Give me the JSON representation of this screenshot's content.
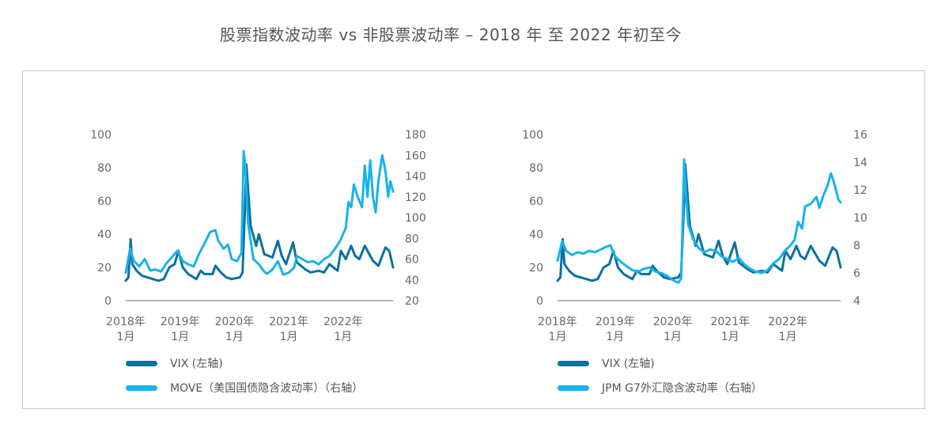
{
  "title": "股票指数波动率 vs 非股票波动率 – 2018 年 至 2022 年初至今",
  "colors": {
    "dark": "#0a71a2",
    "light": "#18b3ea",
    "axis": "#999999",
    "frame": "#c9c9c9"
  },
  "charts": [
    {
      "legend": {
        "series1": "VIX (左轴)",
        "series2": "MOVE（美国国债隐含波动率）（右轴）"
      },
      "left_ticks": [
        "0",
        "20",
        "40",
        "60",
        "80",
        "100"
      ],
      "right_ticks": [
        "20",
        "40",
        "60",
        "80",
        "100",
        "120",
        "140",
        "160",
        "180"
      ],
      "x_ticks": [
        {
          "year": "2018年",
          "month": "1月"
        },
        {
          "year": "2019年",
          "month": "1月"
        },
        {
          "year": "2020年",
          "month": "1月"
        },
        {
          "year": "2021年",
          "month": "1月"
        },
        {
          "year": "2022年",
          "month": "1月"
        }
      ]
    },
    {
      "legend": {
        "series1": "VIX (左轴)",
        "series2": "JPM G7外汇隐含波动率（右轴）"
      },
      "left_ticks": [
        "0",
        "20",
        "40",
        "60",
        "80",
        "100"
      ],
      "right_ticks": [
        "4",
        "6",
        "8",
        "10",
        "12",
        "14",
        "16"
      ],
      "x_ticks": [
        {
          "year": "2018年",
          "month": "1月"
        },
        {
          "year": "2019年",
          "month": "1月"
        },
        {
          "year": "2020年",
          "month": "1月"
        },
        {
          "year": "2021年",
          "month": "1月"
        },
        {
          "year": "2022年",
          "month": "1月"
        }
      ]
    }
  ],
  "chart_data": [
    {
      "type": "line",
      "x_range": [
        2018.0,
        2022.92
      ],
      "ylim_left": [
        0,
        100
      ],
      "ylim_right": [
        20,
        180
      ],
      "series": [
        {
          "name": "VIX (左轴)",
          "axis": "left",
          "color": "#0a71a2",
          "points": [
            [
              2018.0,
              12
            ],
            [
              2018.05,
              14
            ],
            [
              2018.09,
              37
            ],
            [
              2018.12,
              22
            ],
            [
              2018.2,
              18
            ],
            [
              2018.3,
              15
            ],
            [
              2018.4,
              14
            ],
            [
              2018.5,
              13
            ],
            [
              2018.6,
              12
            ],
            [
              2018.7,
              13
            ],
            [
              2018.8,
              20
            ],
            [
              2018.9,
              22
            ],
            [
              2018.97,
              30
            ],
            [
              2019.05,
              20
            ],
            [
              2019.15,
              16
            ],
            [
              2019.3,
              13
            ],
            [
              2019.38,
              18
            ],
            [
              2019.45,
              16
            ],
            [
              2019.6,
              16
            ],
            [
              2019.65,
              21
            ],
            [
              2019.75,
              17
            ],
            [
              2019.85,
              14
            ],
            [
              2019.95,
              13
            ],
            [
              2020.1,
              14
            ],
            [
              2020.15,
              17
            ],
            [
              2020.2,
              60
            ],
            [
              2020.22,
              82
            ],
            [
              2020.3,
              45
            ],
            [
              2020.4,
              33
            ],
            [
              2020.45,
              40
            ],
            [
              2020.55,
              28
            ],
            [
              2020.7,
              26
            ],
            [
              2020.8,
              36
            ],
            [
              2020.87,
              27
            ],
            [
              2020.95,
              22
            ],
            [
              2021.08,
              35
            ],
            [
              2021.15,
              23
            ],
            [
              2021.3,
              19
            ],
            [
              2021.4,
              17
            ],
            [
              2021.55,
              18
            ],
            [
              2021.65,
              17
            ],
            [
              2021.75,
              22
            ],
            [
              2021.9,
              18
            ],
            [
              2021.96,
              30
            ],
            [
              2022.05,
              25
            ],
            [
              2022.15,
              33
            ],
            [
              2022.22,
              27
            ],
            [
              2022.3,
              25
            ],
            [
              2022.4,
              33
            ],
            [
              2022.45,
              30
            ],
            [
              2022.55,
              24
            ],
            [
              2022.65,
              21
            ],
            [
              2022.78,
              32
            ],
            [
              2022.85,
              30
            ],
            [
              2022.92,
              20
            ]
          ]
        },
        {
          "name": "MOVE（美国国债隐含波动率）（右轴）",
          "axis": "right",
          "color": "#18b3ea",
          "points": [
            [
              2018.0,
              47
            ],
            [
              2018.08,
              70
            ],
            [
              2018.15,
              58
            ],
            [
              2018.25,
              53
            ],
            [
              2018.35,
              60
            ],
            [
              2018.45,
              49
            ],
            [
              2018.55,
              50
            ],
            [
              2018.65,
              48
            ],
            [
              2018.75,
              56
            ],
            [
              2018.85,
              62
            ],
            [
              2018.95,
              68
            ],
            [
              2019.05,
              58
            ],
            [
              2019.15,
              55
            ],
            [
              2019.25,
              53
            ],
            [
              2019.35,
              65
            ],
            [
              2019.45,
              75
            ],
            [
              2019.55,
              86
            ],
            [
              2019.65,
              88
            ],
            [
              2019.7,
              78
            ],
            [
              2019.8,
              70
            ],
            [
              2019.88,
              74
            ],
            [
              2019.95,
              60
            ],
            [
              2020.05,
              58
            ],
            [
              2020.13,
              66
            ],
            [
              2020.17,
              164
            ],
            [
              2020.2,
              150
            ],
            [
              2020.25,
              95
            ],
            [
              2020.35,
              60
            ],
            [
              2020.45,
              55
            ],
            [
              2020.55,
              48
            ],
            [
              2020.6,
              46
            ],
            [
              2020.7,
              50
            ],
            [
              2020.8,
              58
            ],
            [
              2020.9,
              45
            ],
            [
              2021.0,
              47
            ],
            [
              2021.1,
              52
            ],
            [
              2021.15,
              63
            ],
            [
              2021.25,
              60
            ],
            [
              2021.35,
              57
            ],
            [
              2021.45,
              58
            ],
            [
              2021.55,
              55
            ],
            [
              2021.65,
              60
            ],
            [
              2021.75,
              63
            ],
            [
              2021.85,
              70
            ],
            [
              2021.95,
              78
            ],
            [
              2022.05,
              90
            ],
            [
              2022.1,
              115
            ],
            [
              2022.15,
              110
            ],
            [
              2022.2,
              132
            ],
            [
              2022.27,
              120
            ],
            [
              2022.35,
              110
            ],
            [
              2022.4,
              150
            ],
            [
              2022.45,
              120
            ],
            [
              2022.5,
              155
            ],
            [
              2022.55,
              120
            ],
            [
              2022.6,
              105
            ],
            [
              2022.65,
              135
            ],
            [
              2022.72,
              160
            ],
            [
              2022.78,
              145
            ],
            [
              2022.83,
              120
            ],
            [
              2022.87,
              135
            ],
            [
              2022.92,
              125
            ]
          ]
        }
      ]
    },
    {
      "type": "line",
      "x_range": [
        2018.0,
        2022.92
      ],
      "ylim_left": [
        0,
        100
      ],
      "ylim_right": [
        4,
        16
      ],
      "series": [
        {
          "name": "VIX (左轴)",
          "axis": "left",
          "color": "#0a71a2",
          "points": [
            [
              2018.0,
              12
            ],
            [
              2018.05,
              14
            ],
            [
              2018.09,
              37
            ],
            [
              2018.12,
              22
            ],
            [
              2018.2,
              18
            ],
            [
              2018.3,
              15
            ],
            [
              2018.4,
              14
            ],
            [
              2018.5,
              13
            ],
            [
              2018.6,
              12
            ],
            [
              2018.7,
              13
            ],
            [
              2018.8,
              20
            ],
            [
              2018.9,
              22
            ],
            [
              2018.97,
              30
            ],
            [
              2019.05,
              20
            ],
            [
              2019.15,
              16
            ],
            [
              2019.3,
              13
            ],
            [
              2019.38,
              18
            ],
            [
              2019.45,
              16
            ],
            [
              2019.6,
              16
            ],
            [
              2019.65,
              21
            ],
            [
              2019.75,
              17
            ],
            [
              2019.85,
              14
            ],
            [
              2019.95,
              13
            ],
            [
              2020.1,
              14
            ],
            [
              2020.15,
              17
            ],
            [
              2020.2,
              60
            ],
            [
              2020.22,
              82
            ],
            [
              2020.3,
              45
            ],
            [
              2020.4,
              33
            ],
            [
              2020.45,
              40
            ],
            [
              2020.55,
              28
            ],
            [
              2020.7,
              26
            ],
            [
              2020.8,
              36
            ],
            [
              2020.87,
              27
            ],
            [
              2020.95,
              22
            ],
            [
              2021.08,
              35
            ],
            [
              2021.15,
              23
            ],
            [
              2021.3,
              19
            ],
            [
              2021.4,
              17
            ],
            [
              2021.55,
              18
            ],
            [
              2021.65,
              17
            ],
            [
              2021.75,
              22
            ],
            [
              2021.9,
              18
            ],
            [
              2021.96,
              30
            ],
            [
              2022.05,
              25
            ],
            [
              2022.15,
              33
            ],
            [
              2022.22,
              27
            ],
            [
              2022.3,
              25
            ],
            [
              2022.4,
              33
            ],
            [
              2022.45,
              30
            ],
            [
              2022.55,
              24
            ],
            [
              2022.65,
              21
            ],
            [
              2022.78,
              32
            ],
            [
              2022.85,
              30
            ],
            [
              2022.92,
              20
            ]
          ]
        },
        {
          "name": "JPM G7外汇隐含波动率（右轴）",
          "axis": "right",
          "color": "#18b3ea",
          "points": [
            [
              2018.0,
              6.9
            ],
            [
              2018.08,
              8.3
            ],
            [
              2018.15,
              7.6
            ],
            [
              2018.25,
              7.3
            ],
            [
              2018.35,
              7.5
            ],
            [
              2018.45,
              7.4
            ],
            [
              2018.55,
              7.6
            ],
            [
              2018.65,
              7.5
            ],
            [
              2018.75,
              7.7
            ],
            [
              2018.85,
              7.9
            ],
            [
              2018.92,
              8.0
            ],
            [
              2019.0,
              7.2
            ],
            [
              2019.1,
              6.8
            ],
            [
              2019.2,
              6.5
            ],
            [
              2019.3,
              6.2
            ],
            [
              2019.4,
              6.1
            ],
            [
              2019.5,
              6.3
            ],
            [
              2019.6,
              6.4
            ],
            [
              2019.7,
              6.1
            ],
            [
              2019.8,
              6.0
            ],
            [
              2019.9,
              5.8
            ],
            [
              2020.0,
              5.5
            ],
            [
              2020.1,
              5.3
            ],
            [
              2020.15,
              5.6
            ],
            [
              2020.2,
              14.2
            ],
            [
              2020.22,
              12.5
            ],
            [
              2020.27,
              9.5
            ],
            [
              2020.35,
              8.5
            ],
            [
              2020.45,
              7.8
            ],
            [
              2020.55,
              7.5
            ],
            [
              2020.65,
              7.7
            ],
            [
              2020.75,
              7.6
            ],
            [
              2020.85,
              7.2
            ],
            [
              2020.95,
              7.0
            ],
            [
              2021.05,
              6.8
            ],
            [
              2021.15,
              7.1
            ],
            [
              2021.25,
              6.6
            ],
            [
              2021.35,
              6.3
            ],
            [
              2021.45,
              6.1
            ],
            [
              2021.55,
              6.0
            ],
            [
              2021.65,
              6.2
            ],
            [
              2021.75,
              6.7
            ],
            [
              2021.85,
              7.0
            ],
            [
              2021.95,
              7.6
            ],
            [
              2022.05,
              8.0
            ],
            [
              2022.12,
              8.4
            ],
            [
              2022.18,
              9.7
            ],
            [
              2022.25,
              9.2
            ],
            [
              2022.3,
              10.8
            ],
            [
              2022.4,
              11.0
            ],
            [
              2022.5,
              11.5
            ],
            [
              2022.55,
              10.7
            ],
            [
              2022.62,
              11.6
            ],
            [
              2022.7,
              12.4
            ],
            [
              2022.75,
              13.2
            ],
            [
              2022.8,
              12.6
            ],
            [
              2022.85,
              11.8
            ],
            [
              2022.88,
              11.3
            ],
            [
              2022.92,
              11.1
            ]
          ]
        }
      ]
    }
  ]
}
